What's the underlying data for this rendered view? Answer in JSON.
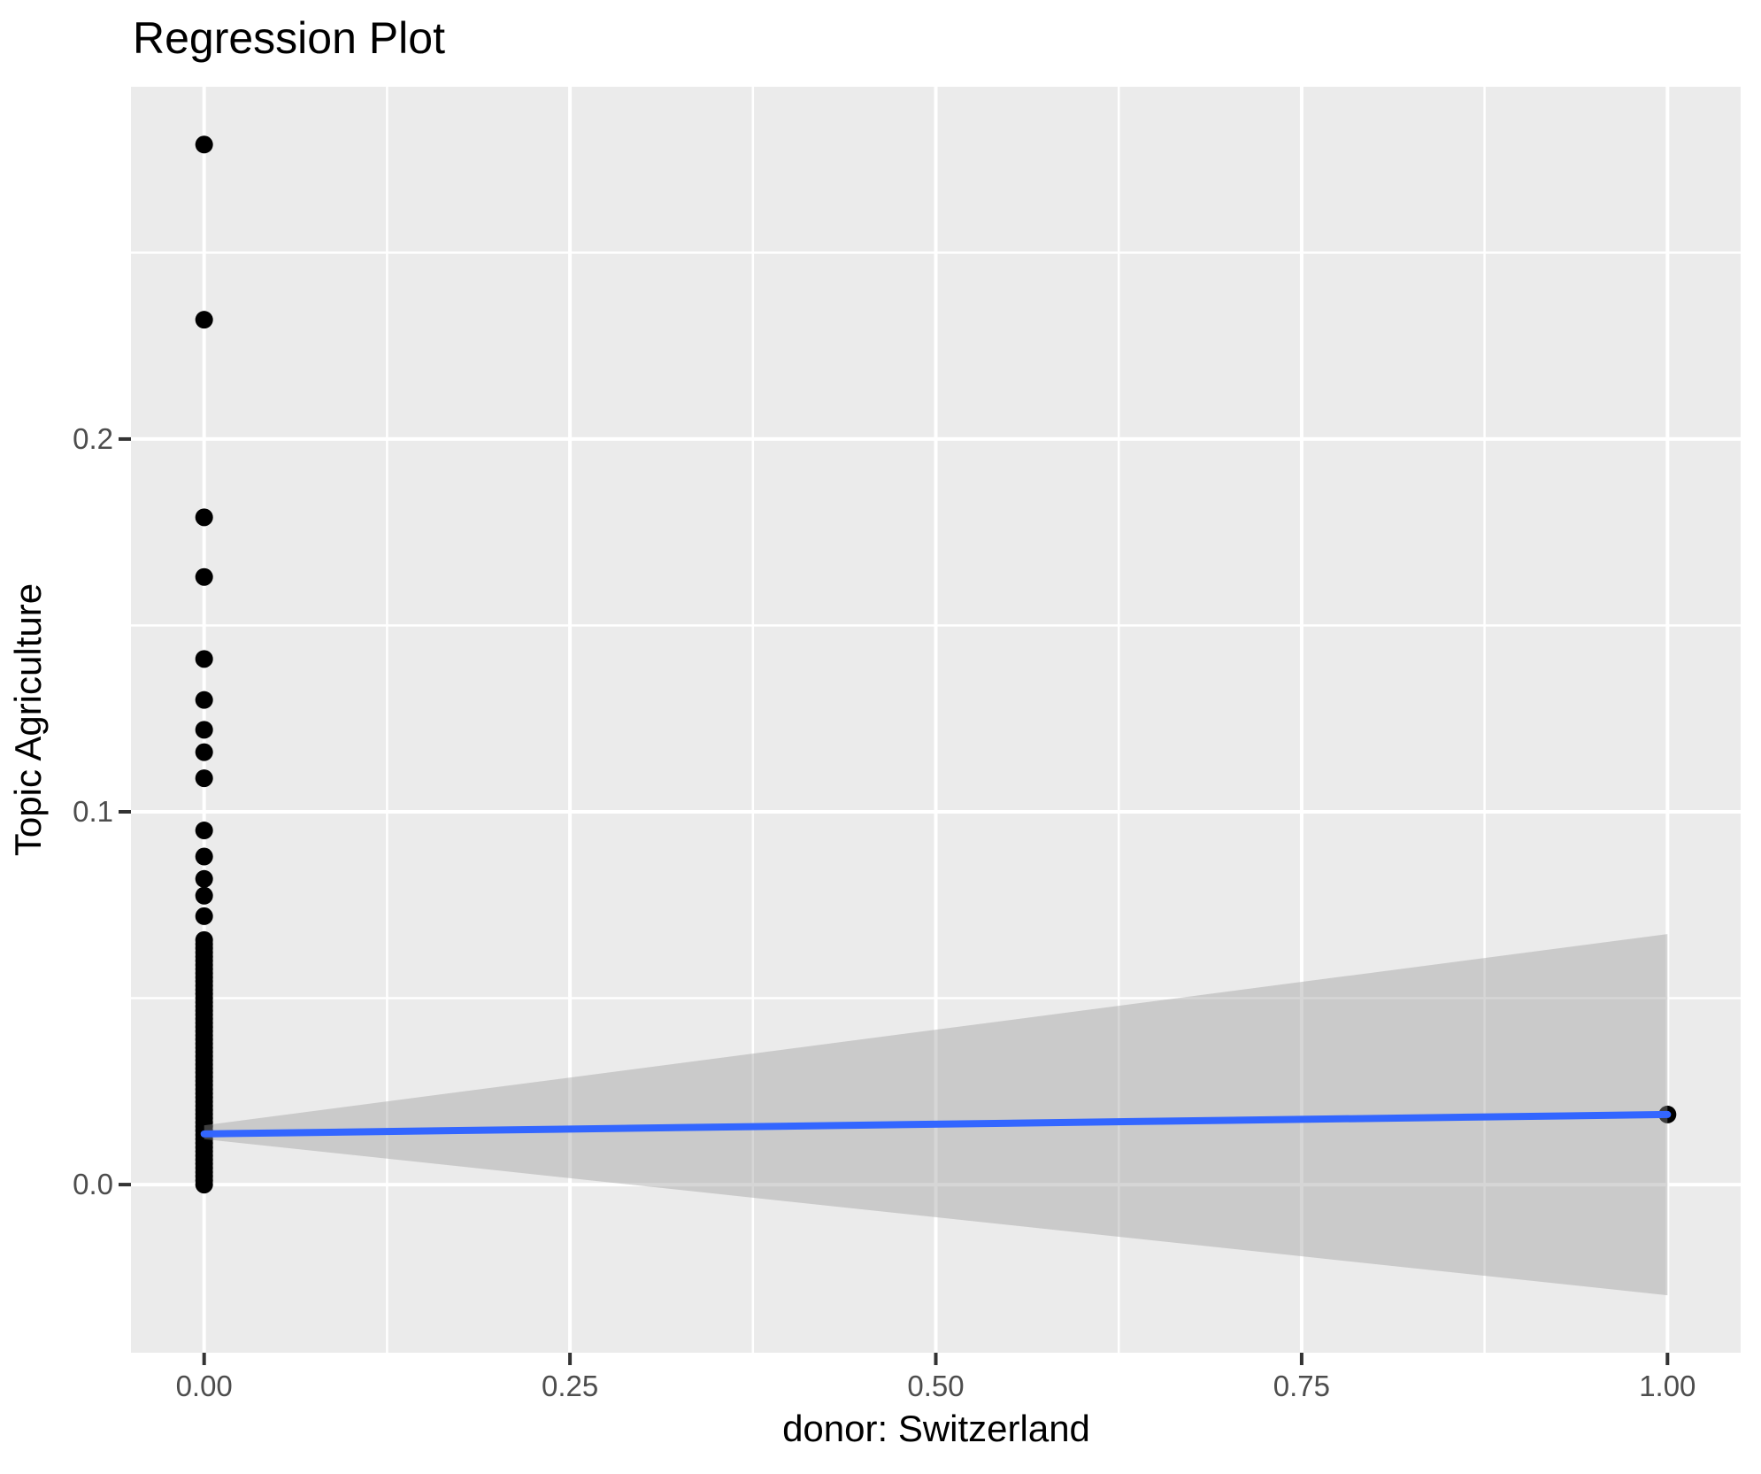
{
  "chart_data": {
    "type": "scatter",
    "title": "Regression Plot",
    "xlabel": "donor: Switzerland",
    "ylabel": "Topic Agriculture",
    "xlim": [
      -0.05,
      1.05
    ],
    "ylim": [
      -0.0451,
      0.2945
    ],
    "x_ticks": {
      "values": [
        0,
        0.25,
        0.5,
        0.75,
        1
      ],
      "labels": [
        "0.00",
        "0.25",
        "0.50",
        "0.75",
        "1.00"
      ]
    },
    "y_ticks": {
      "values": [
        0,
        0.1,
        0.2
      ],
      "labels": [
        "0.0",
        "0.1",
        "0.2"
      ]
    },
    "x_minor_gridlines": [
      0.125,
      0.375,
      0.625,
      0.875
    ],
    "y_minor_gridlines": [
      0.05,
      0.15,
      0.25
    ],
    "grid": "major+minor white gridlines on grey panel",
    "legend": "none",
    "points": {
      "x0_discrete_y": [
        0.279,
        0.232,
        0.179,
        0.163,
        0.141,
        0.13,
        0.122,
        0.116,
        0.109,
        0.095,
        0.088,
        0.082,
        0.0775,
        0.072
      ],
      "x0_dense_cluster": {
        "x": 0,
        "y_min": 0.0,
        "y_max": 0.0656,
        "count": 60,
        "note": "overplotted solid column of points"
      },
      "x1_points": [
        {
          "x": 1,
          "y": 0.0188
        }
      ]
    },
    "regression_line": {
      "x": [
        0,
        1
      ],
      "y": [
        0.0136,
        0.0188
      ]
    },
    "confidence_band": {
      "x": [
        0,
        1
      ],
      "upper": [
        0.0159,
        0.0672
      ],
      "lower": [
        0.0122,
        -0.0297
      ]
    },
    "colors": {
      "panel_background": "#EBEBEB",
      "gridline": "#FFFFFF",
      "ci_band_fill": "#999999",
      "ci_band_opacity": 0.4,
      "regression_line": "#3366FF",
      "point": "#000000",
      "tick_mark": "#333333",
      "tick_label": "#4D4D4D",
      "title": "#000000"
    }
  }
}
